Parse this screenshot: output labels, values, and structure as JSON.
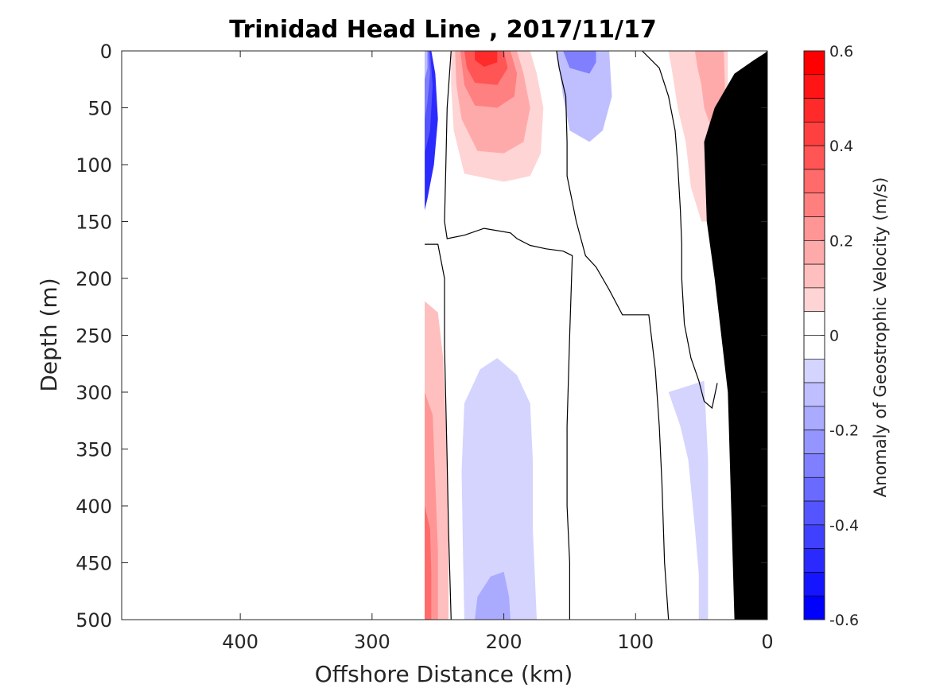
{
  "chart_data": {
    "type": "heatmap",
    "title": "Trinidad Head Line , 2017/11/17",
    "xlabel": "Offshore Distance (km)",
    "ylabel": "Depth (m)",
    "xlim": [
      490,
      0
    ],
    "ylim": [
      500,
      0
    ],
    "x_reversed": true,
    "y_reversed": true,
    "xticks": [
      400,
      300,
      200,
      100,
      0
    ],
    "yticks": [
      0,
      50,
      100,
      150,
      200,
      250,
      300,
      350,
      400,
      450,
      500
    ],
    "grid": false,
    "colorbar": {
      "label": "Anomaly of Geostrophic Velocity (m/s)",
      "range": [
        -0.6,
        0.6
      ],
      "ticks": [
        0.6,
        0.4,
        0.2,
        0,
        -0.2,
        -0.4,
        -0.6
      ],
      "levels": [
        0.6,
        0.55,
        0.5,
        0.45,
        0.4,
        0.35,
        0.3,
        0.25,
        0.2,
        0.15,
        0.1,
        0.05,
        0,
        -0.05,
        -0.1,
        -0.15,
        -0.2,
        -0.25,
        -0.3,
        -0.35,
        -0.4,
        -0.45,
        -0.5,
        -0.55,
        -0.6
      ],
      "positive_color": "#ff0000",
      "negative_color": "#0000ff",
      "zero_color": "#ffffff"
    },
    "regions": [
      {
        "sign": "negative",
        "level": 0.5,
        "points": [
          [
            260,
            0
          ],
          [
            255,
            0
          ],
          [
            252,
            20
          ],
          [
            250,
            60
          ],
          [
            253,
            100
          ],
          [
            258,
            130
          ],
          [
            260,
            140
          ]
        ]
      },
      {
        "sign": "negative",
        "level": 0.4,
        "points": [
          [
            260,
            0
          ],
          [
            256,
            0
          ],
          [
            254,
            30
          ],
          [
            256,
            70
          ],
          [
            260,
            90
          ]
        ]
      },
      {
        "sign": "negative",
        "level": 0.3,
        "points": [
          [
            260,
            0
          ],
          [
            257,
            0
          ],
          [
            256,
            20
          ],
          [
            258,
            45
          ],
          [
            260,
            60
          ]
        ]
      },
      {
        "sign": "negative",
        "level": 0.15,
        "points": [
          [
            260,
            0
          ],
          [
            258,
            0
          ],
          [
            258,
            15
          ],
          [
            260,
            25
          ]
        ]
      },
      {
        "sign": "positive",
        "level": 0.1,
        "points": [
          [
            240,
            0
          ],
          [
            180,
            0
          ],
          [
            175,
            20
          ],
          [
            170,
            50
          ],
          [
            172,
            90
          ],
          [
            180,
            110
          ],
          [
            200,
            115
          ],
          [
            230,
            108
          ],
          [
            238,
            70
          ],
          [
            240,
            30
          ]
        ]
      },
      {
        "sign": "positive",
        "level": 0.2,
        "points": [
          [
            237,
            0
          ],
          [
            190,
            0
          ],
          [
            185,
            20
          ],
          [
            180,
            50
          ],
          [
            185,
            80
          ],
          [
            200,
            90
          ],
          [
            220,
            88
          ],
          [
            232,
            60
          ],
          [
            236,
            30
          ]
        ]
      },
      {
        "sign": "positive",
        "level": 0.3,
        "points": [
          [
            233,
            0
          ],
          [
            195,
            0
          ],
          [
            190,
            20
          ],
          [
            192,
            40
          ],
          [
            205,
            50
          ],
          [
            222,
            48
          ],
          [
            230,
            30
          ]
        ]
      },
      {
        "sign": "positive",
        "level": 0.4,
        "points": [
          [
            230,
            0
          ],
          [
            200,
            0
          ],
          [
            197,
            15
          ],
          [
            205,
            30
          ],
          [
            222,
            28
          ],
          [
            228,
            15
          ]
        ]
      },
      {
        "sign": "positive",
        "level": 0.5,
        "points": [
          [
            222,
            0
          ],
          [
            205,
            0
          ],
          [
            205,
            10
          ],
          [
            215,
            14
          ],
          [
            222,
            8
          ]
        ]
      },
      {
        "sign": "negative",
        "level": 0.15,
        "points": [
          [
            160,
            0
          ],
          [
            120,
            0
          ],
          [
            118,
            40
          ],
          [
            125,
            70
          ],
          [
            135,
            80
          ],
          [
            150,
            70
          ],
          [
            155,
            40
          ],
          [
            158,
            15
          ]
        ]
      },
      {
        "sign": "negative",
        "level": 0.3,
        "points": [
          [
            155,
            0
          ],
          [
            130,
            0
          ],
          [
            130,
            10
          ],
          [
            135,
            20
          ],
          [
            150,
            15
          ]
        ]
      },
      {
        "sign": "positive",
        "level": 0.1,
        "points": [
          [
            75,
            0
          ],
          [
            30,
            0
          ],
          [
            30,
            60
          ],
          [
            33,
            110
          ],
          [
            40,
            150
          ],
          [
            50,
            150
          ],
          [
            58,
            120
          ],
          [
            62,
            80
          ],
          [
            68,
            50
          ],
          [
            72,
            20
          ]
        ]
      },
      {
        "sign": "positive",
        "level": 0.2,
        "points": [
          [
            55,
            0
          ],
          [
            33,
            0
          ],
          [
            32,
            40
          ],
          [
            35,
            80
          ],
          [
            42,
            70
          ],
          [
            48,
            50
          ],
          [
            50,
            30
          ],
          [
            53,
            15
          ]
        ]
      },
      {
        "sign": "positive",
        "level": 0.15,
        "points": [
          [
            260,
            220
          ],
          [
            250,
            230
          ],
          [
            246,
            270
          ],
          [
            244,
            330
          ],
          [
            242,
            400
          ],
          [
            242,
            500
          ],
          [
            260,
            500
          ]
        ]
      },
      {
        "sign": "positive",
        "level": 0.25,
        "points": [
          [
            260,
            300
          ],
          [
            254,
            320
          ],
          [
            252,
            380
          ],
          [
            250,
            440
          ],
          [
            250,
            500
          ],
          [
            260,
            500
          ]
        ]
      },
      {
        "sign": "positive",
        "level": 0.35,
        "points": [
          [
            260,
            400
          ],
          [
            256,
            420
          ],
          [
            255,
            460
          ],
          [
            255,
            500
          ],
          [
            260,
            500
          ]
        ]
      },
      {
        "sign": "negative",
        "level": 0.1,
        "points": [
          [
            230,
            500
          ],
          [
            231,
            440
          ],
          [
            232,
            370
          ],
          [
            230,
            310
          ],
          [
            218,
            280
          ],
          [
            205,
            270
          ],
          [
            190,
            285
          ],
          [
            180,
            310
          ],
          [
            178,
            360
          ],
          [
            178,
            420
          ],
          [
            175,
            500
          ]
        ]
      },
      {
        "sign": "negative",
        "level": 0.2,
        "points": [
          [
            222,
            500
          ],
          [
            220,
            480
          ],
          [
            210,
            462
          ],
          [
            200,
            458
          ],
          [
            196,
            480
          ],
          [
            195,
            500
          ]
        ]
      },
      {
        "sign": "negative",
        "level": 0.1,
        "points": [
          [
            52,
            500
          ],
          [
            52,
            460
          ],
          [
            55,
            420
          ],
          [
            60,
            360
          ],
          [
            66,
            330
          ],
          [
            75,
            300
          ],
          [
            48,
            290
          ],
          [
            45,
            360
          ],
          [
            45,
            430
          ],
          [
            45,
            500
          ]
        ]
      }
    ],
    "contours": [
      [
        [
          260,
          170
        ],
        [
          250,
          170
        ],
        [
          245,
          200
        ],
        [
          245,
          260
        ],
        [
          243,
          360
        ],
        [
          242,
          420
        ],
        [
          240,
          500
        ]
      ],
      [
        [
          240,
          0
        ],
        [
          243,
          50
        ],
        [
          244,
          100
        ],
        [
          245,
          150
        ],
        [
          243,
          165
        ],
        [
          230,
          162
        ],
        [
          215,
          156
        ],
        [
          195,
          160
        ],
        [
          190,
          165
        ],
        [
          180,
          171
        ],
        [
          168,
          174
        ],
        [
          155,
          176
        ],
        [
          148,
          180
        ],
        [
          150,
          250
        ],
        [
          152,
          330
        ],
        [
          152,
          400
        ],
        [
          150,
          450
        ],
        [
          150,
          500
        ]
      ],
      [
        [
          160,
          0
        ],
        [
          158,
          15
        ],
        [
          153,
          40
        ],
        [
          152,
          80
        ],
        [
          152,
          110
        ],
        [
          145,
          150
        ],
        [
          138,
          180
        ],
        [
          130,
          190
        ],
        [
          120,
          210
        ],
        [
          110,
          232
        ],
        [
          90,
          232
        ],
        [
          85,
          280
        ],
        [
          82,
          330
        ],
        [
          80,
          380
        ],
        [
          78,
          450
        ],
        [
          75,
          500
        ]
      ],
      [
        [
          95,
          0
        ],
        [
          82,
          15
        ],
        [
          75,
          40
        ],
        [
          70,
          70
        ],
        [
          68,
          100
        ],
        [
          66,
          140
        ],
        [
          65,
          170
        ],
        [
          65,
          200
        ],
        [
          63,
          240
        ],
        [
          58,
          270
        ],
        [
          52,
          290
        ],
        [
          48,
          308
        ],
        [
          42,
          314
        ],
        [
          38,
          292
        ]
      ],
      [
        [
          30,
          95
        ],
        [
          28,
          130
        ],
        [
          25,
          180
        ],
        [
          23,
          210
        ],
        [
          22,
          230
        ],
        [
          22,
          245
        ],
        [
          21,
          260
        ],
        [
          21,
          275
        ],
        [
          21,
          190
        ]
      ]
    ],
    "bathymetry": [
      [
        0,
        0
      ],
      [
        0,
        500
      ],
      [
        25,
        500
      ],
      [
        30,
        300
      ],
      [
        40,
        200
      ],
      [
        46,
        150
      ],
      [
        48,
        80
      ],
      [
        40,
        50
      ],
      [
        25,
        20
      ],
      [
        10,
        8
      ],
      [
        2,
        2
      ]
    ]
  }
}
